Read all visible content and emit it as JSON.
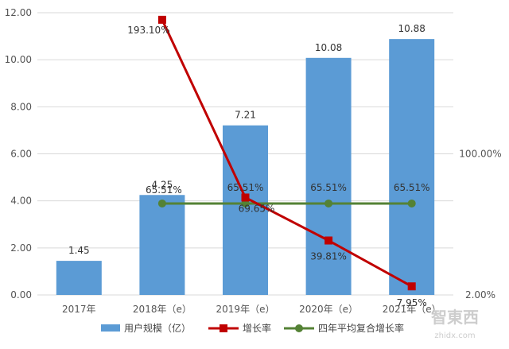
{
  "chart_data": {
    "type": "bar",
    "categories": [
      "2017年",
      "2018年（e）",
      "2019年（e）",
      "2020年（e）",
      "2021年（e）"
    ],
    "ylim": [
      0,
      12
    ],
    "yticks": [
      "0.00",
      "2.00",
      "4.00",
      "6.00",
      "8.00",
      "10.00",
      "12.00"
    ],
    "y2_ticks": [
      "2.00%",
      "100.00%"
    ],
    "colors": {
      "bar": "#5b9bd5",
      "growth": "#c00000",
      "cagr": "#548235",
      "grid": "#d9d9d9"
    },
    "series": [
      {
        "name": "用户规模（亿）",
        "kind": "bar",
        "values": [
          1.45,
          4.25,
          7.21,
          10.08,
          10.88
        ],
        "labels": [
          "1.45",
          "4.25",
          "7.21",
          "10.08",
          "10.88"
        ]
      },
      {
        "name": "增长率",
        "kind": "line",
        "values": [
          null,
          193.1,
          69.65,
          39.81,
          7.95
        ],
        "labels": [
          null,
          "193.10%",
          "69.65%",
          "39.81%",
          "7.95%"
        ]
      },
      {
        "name": "四年平均复合增长率",
        "kind": "line",
        "values": [
          null,
          65.51,
          65.51,
          65.51,
          65.51
        ],
        "labels": [
          null,
          "65.51%",
          "65.51%",
          "65.51%",
          "65.51%"
        ]
      }
    ]
  },
  "watermark": {
    "text": "智東西",
    "sub": "zhidx.com"
  }
}
